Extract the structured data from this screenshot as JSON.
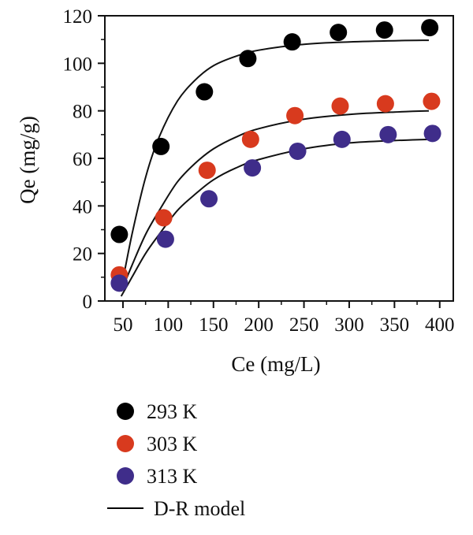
{
  "chart_data": {
    "type": "scatter",
    "xlabel": "Ce (mg/L)",
    "ylabel": "Qe (mg/g)",
    "xlim": [
      30,
      415
    ],
    "ylim": [
      0,
      120
    ],
    "x_ticks": [
      50,
      100,
      150,
      200,
      250,
      300,
      350,
      400
    ],
    "y_ticks": [
      0,
      20,
      40,
      60,
      80,
      100,
      120
    ],
    "x_tick_labels": [
      "50",
      "100",
      "150",
      "200",
      "250",
      "300",
      "350",
      "400"
    ],
    "y_tick_labels": [
      "0",
      "20",
      "40",
      "60",
      "80",
      "100",
      "120"
    ],
    "grid": false,
    "legend_position": "below",
    "series": [
      {
        "name": "293 K",
        "color": "#000000",
        "x": [
          46,
          92,
          140,
          188,
          237,
          288,
          339,
          389
        ],
        "y": [
          28,
          65,
          88,
          102,
          109,
          113,
          114,
          115
        ],
        "fit": {
          "x": [
            48,
            60,
            75,
            90,
            110,
            130,
            150,
            175,
            200,
            250,
            300,
            350,
            388
          ],
          "y": [
            5,
            28,
            52,
            69,
            84,
            93,
            99,
            103,
            105.5,
            108,
            109,
            109.5,
            109.7
          ]
        }
      },
      {
        "name": "303 K",
        "color": "#d83a1e",
        "x": [
          46,
          95,
          143,
          191,
          240,
          290,
          340,
          391
        ],
        "y": [
          11,
          35,
          55,
          68,
          78,
          82,
          83,
          84
        ],
        "fit": {
          "x": [
            48,
            60,
            75,
            90,
            110,
            130,
            150,
            175,
            200,
            250,
            300,
            350,
            388
          ],
          "y": [
            4,
            15,
            28,
            38,
            50,
            58,
            64,
            69,
            72.5,
            76.5,
            78.5,
            79.5,
            80
          ]
        }
      },
      {
        "name": "313 K",
        "color": "#3f2d8a",
        "x": [
          46,
          97,
          145,
          193,
          243,
          292,
          343,
          392
        ],
        "y": [
          7.5,
          26,
          43,
          56,
          63,
          68,
          70,
          70.5
        ],
        "fit": {
          "x": [
            48,
            60,
            75,
            90,
            110,
            130,
            150,
            175,
            200,
            250,
            300,
            350,
            388
          ],
          "y": [
            2,
            10,
            20,
            28,
            38,
            45,
            51,
            56,
            59.5,
            64,
            66.5,
            67.5,
            68
          ]
        }
      }
    ],
    "fit_label": "D-R model"
  },
  "legend": [
    {
      "label": "293 K",
      "color": "#000000",
      "kind": "marker"
    },
    {
      "label": "303 K",
      "color": "#d83a1e",
      "kind": "marker"
    },
    {
      "label": "313 K",
      "color": "#3f2d8a",
      "kind": "marker"
    },
    {
      "label": "D-R model",
      "color": "#000000",
      "kind": "line"
    }
  ]
}
